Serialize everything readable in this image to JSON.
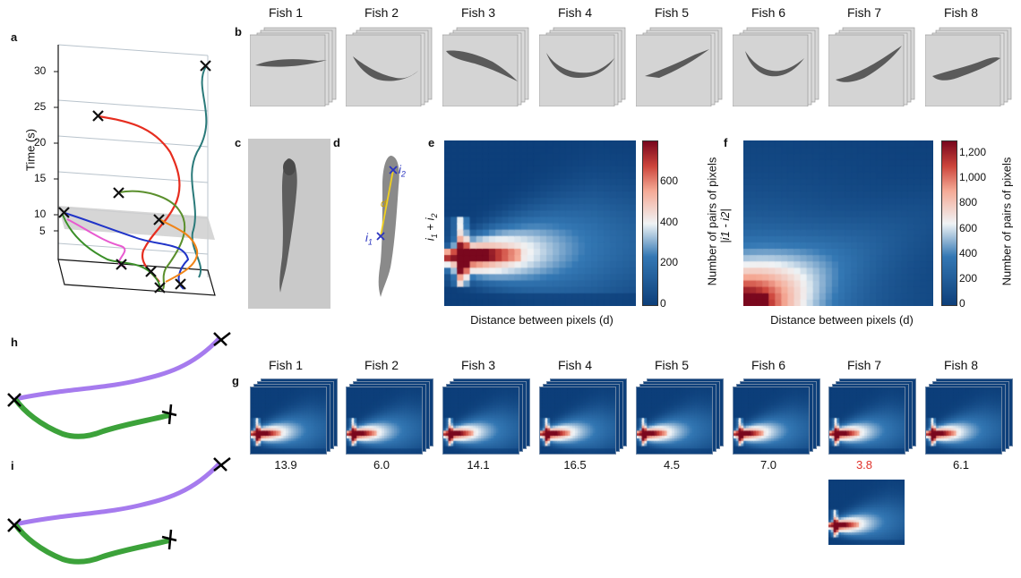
{
  "panel_labels": {
    "a": "a",
    "b": "b",
    "c": "c",
    "d": "d",
    "e": "e",
    "f": "f",
    "g": "g",
    "h": "h",
    "i": "i"
  },
  "fish_titles": [
    "Fish 1",
    "Fish 2",
    "Fish 3",
    "Fish 4",
    "Fish 5",
    "Fish 6",
    "Fish 7",
    "Fish 8"
  ],
  "panel_a": {
    "ylabel": "Time (s)",
    "ticks": [
      "5",
      "10",
      "15",
      "20",
      "25",
      "30"
    ]
  },
  "panel_d": {
    "i1": "i",
    "i1_sub": "1",
    "i2": "i",
    "i2_sub": "2",
    "d": "d"
  },
  "panel_e": {
    "ylabel_i": "i",
    "ylabel_sub1": "1",
    "ylabel_plus": " + ",
    "ylabel_i2": "i",
    "ylabel_sub2": "2",
    "xlabel": "Distance between pixels (d)",
    "cbar_label": "Number of pairs of pixels",
    "cbar_ticks": [
      "0",
      "200",
      "400",
      "600"
    ]
  },
  "panel_f": {
    "ylabel": "|i1 - i2|",
    "xlabel": "Distance between pixels (d)",
    "cbar_label": "Number of pairs of pixels",
    "cbar_ticks": [
      "0",
      "200",
      "400",
      "600",
      "800",
      "1,000",
      "1,200"
    ]
  },
  "panel_g": {
    "values": [
      "13.9",
      "6.0",
      "14.1",
      "16.5",
      "4.5",
      "7.0",
      "3.8",
      "6.1"
    ],
    "highlight_color": "#e0322b"
  },
  "colors": {
    "heat_low": "#0d3f7a",
    "heat_mid": "#f7f7f7",
    "heat_high": "#8b0a1f",
    "traj": [
      "#2a7a7a",
      "#e62d1f",
      "#5a8f2c",
      "#2034c8",
      "#e85ad0",
      "#f08418",
      "#6e4fa0",
      "#c8b020"
    ]
  }
}
